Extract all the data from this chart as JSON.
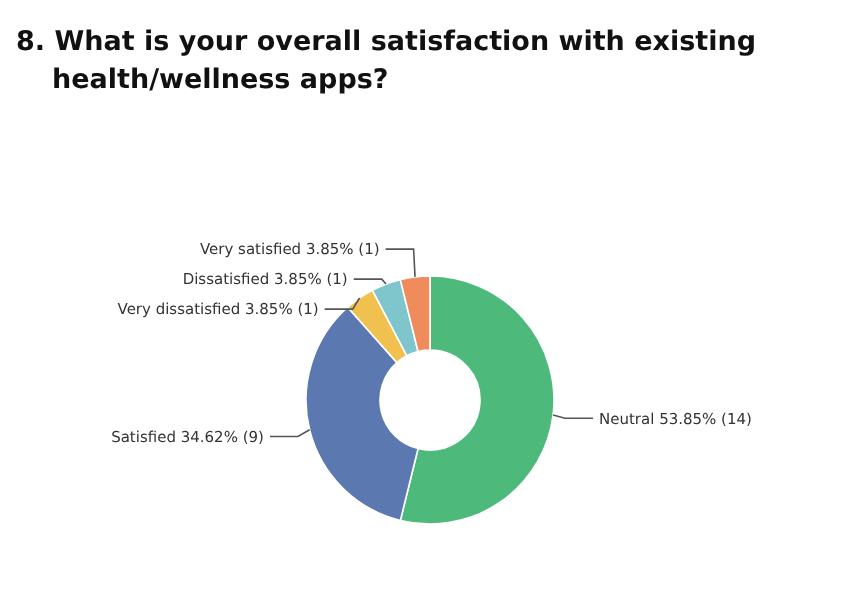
{
  "chart_data": {
    "type": "donut",
    "title": "8. What is your overall satisfaction with existing health/wellness apps?",
    "categories": [
      "Neutral",
      "Satisfied",
      "Very dissatisfied",
      "Dissatisfied",
      "Very satisfied"
    ],
    "values": [
      53.85,
      34.62,
      3.85,
      3.85,
      3.85
    ],
    "value_labels": [
      "53.85% (14)",
      "34.62% (9)",
      "3.85% (1)",
      "3.85% (1)",
      "3.85% (1)"
    ],
    "colors": [
      "#4dba7b",
      "#5b79b0",
      "#f0c14e",
      "#7ec6cb",
      "#f08c5c"
    ]
  }
}
